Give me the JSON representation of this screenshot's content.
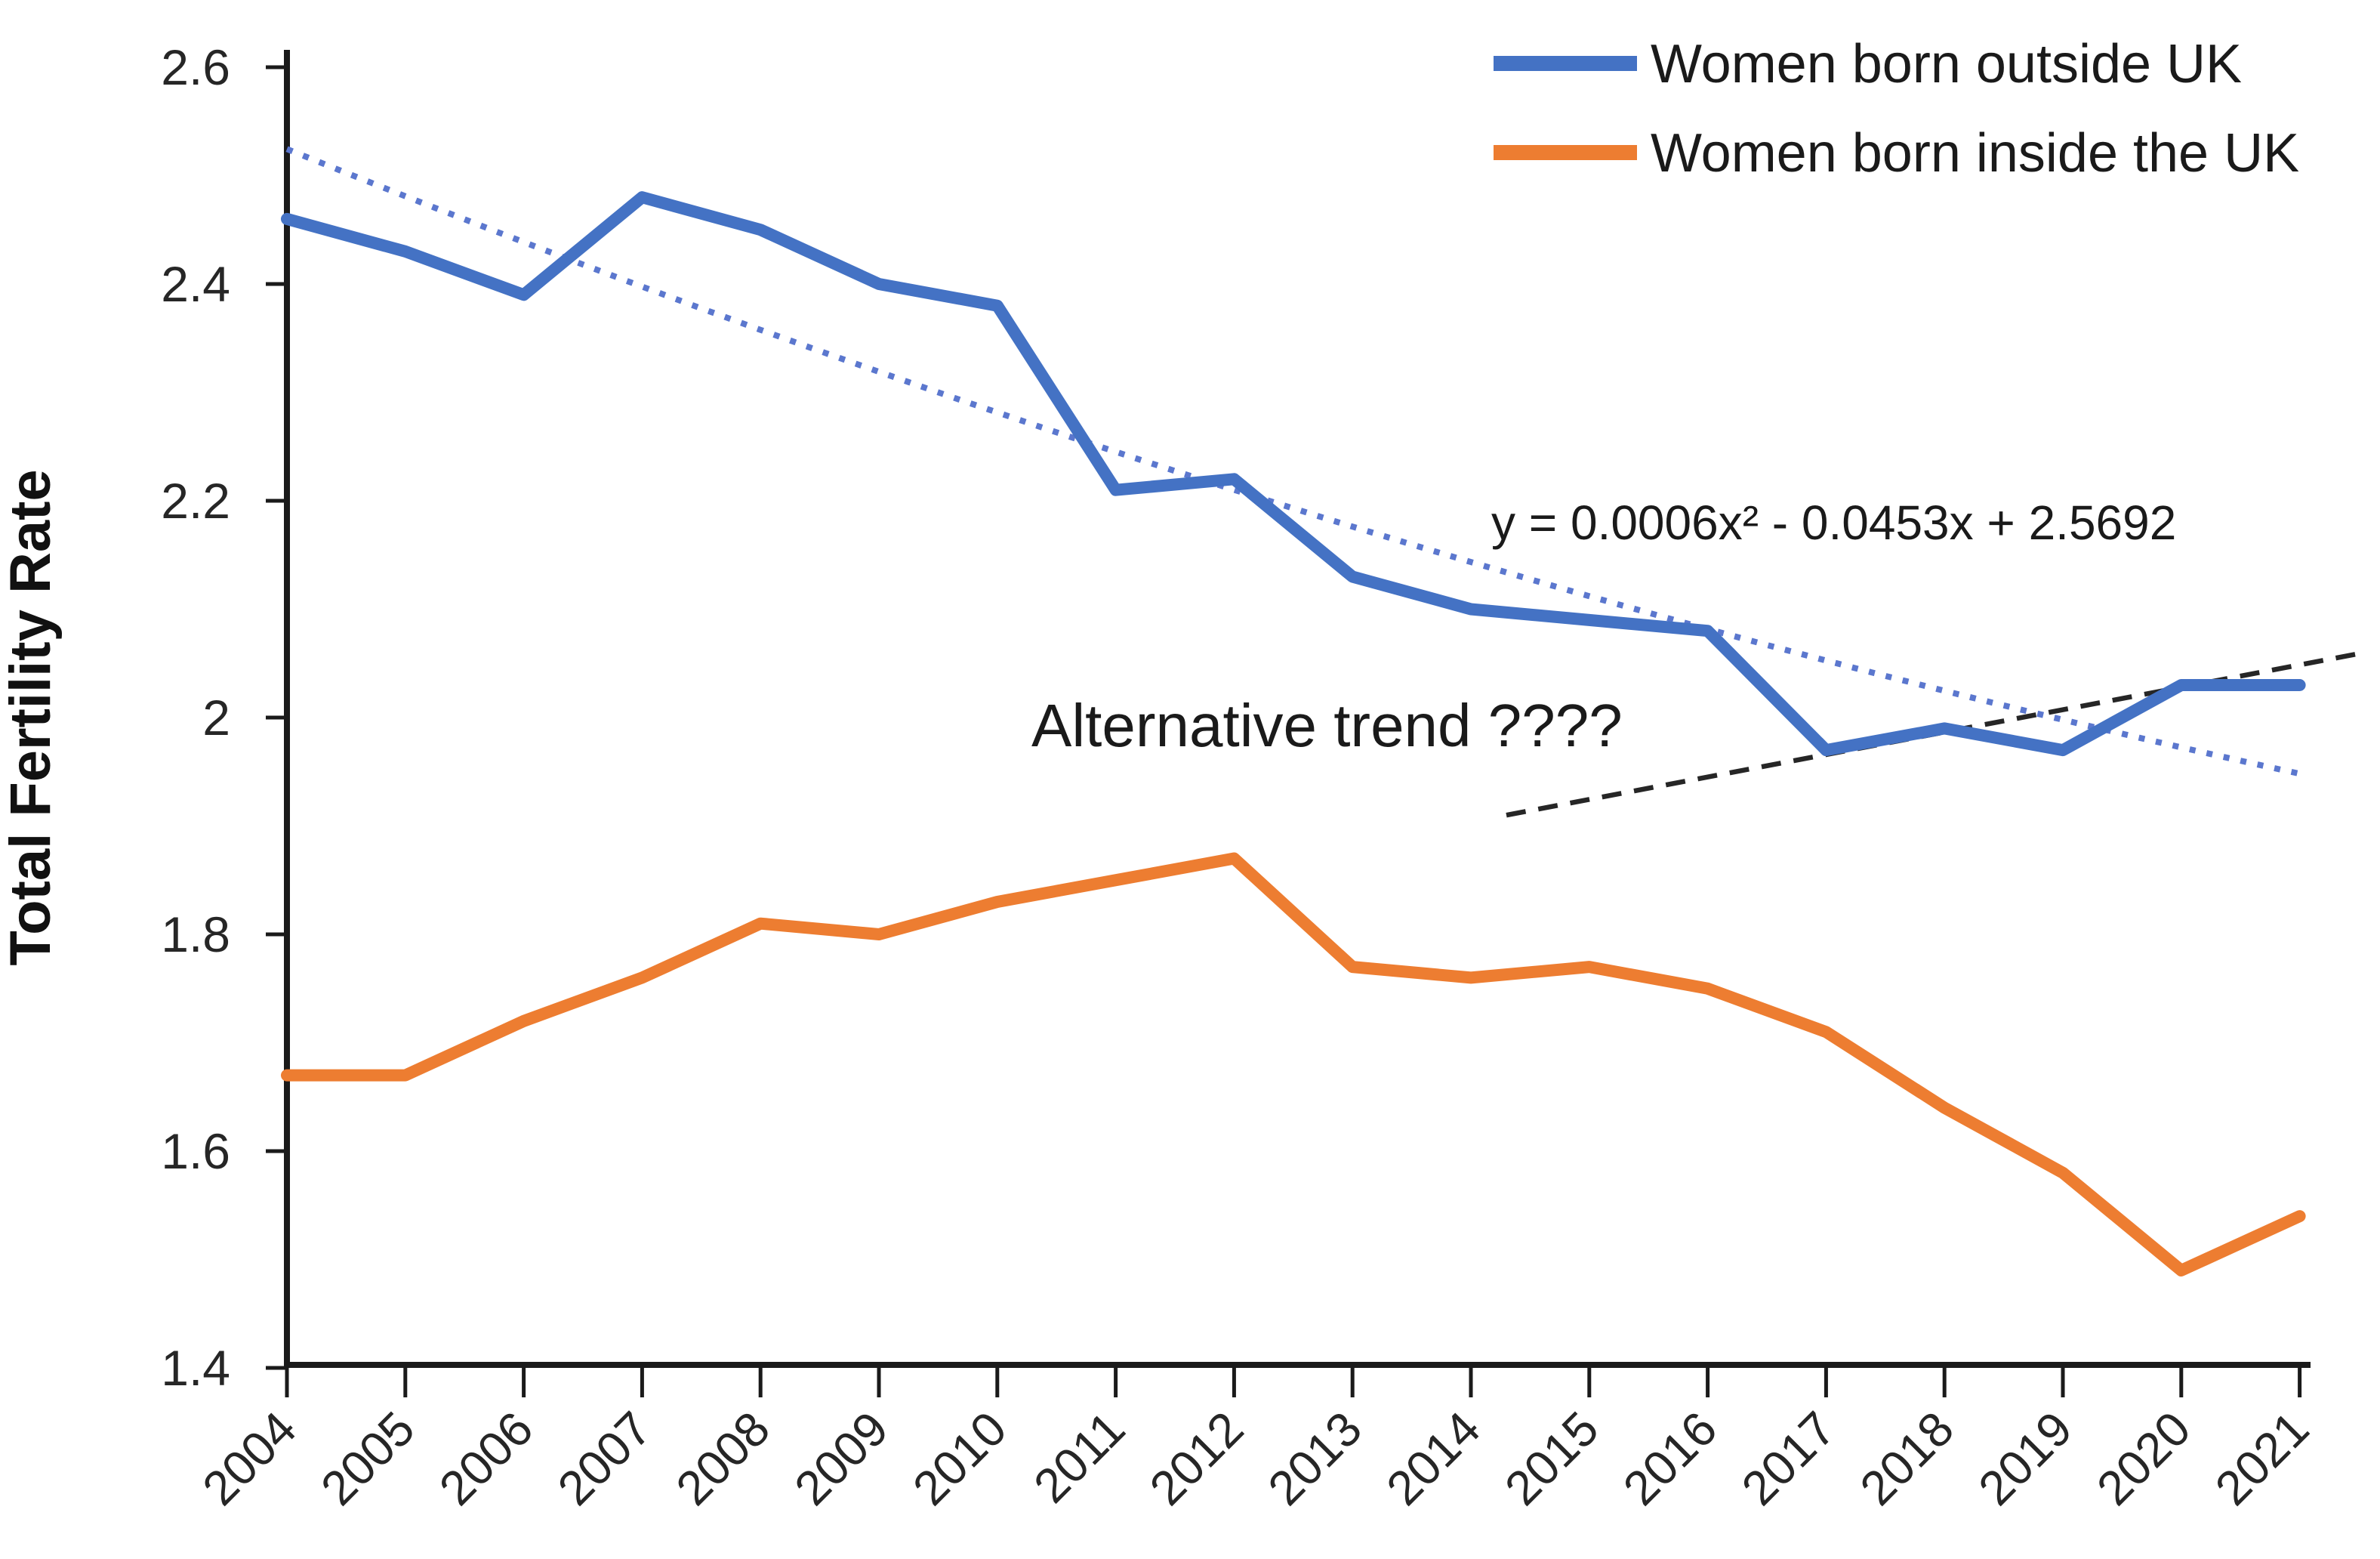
{
  "chart_data": {
    "type": "line",
    "title": "",
    "xlabel": "",
    "ylabel": "Total Fertility Rate",
    "x": [
      "2004",
      "2005",
      "2006",
      "2007",
      "2008",
      "2009",
      "2010",
      "2011",
      "2012",
      "2013",
      "2014",
      "2015",
      "2016",
      "2017",
      "2018",
      "2019",
      "2020",
      "2021"
    ],
    "ylim": [
      1.4,
      2.6
    ],
    "yticks": {
      "values": [
        2.6,
        2.4,
        2.2,
        2.0,
        1.8,
        1.6,
        1.4
      ],
      "labels": [
        "2.6",
        "2.4",
        "2.2",
        "2",
        "1.8",
        "1.6",
        "1.4"
      ]
    },
    "grid": false,
    "legend_position": "top-right",
    "series": [
      {
        "name": "Women born outside UK",
        "color": "#4472C4",
        "style": "solid",
        "values": [
          2.46,
          2.43,
          2.39,
          2.48,
          2.45,
          2.4,
          2.38,
          2.21,
          2.22,
          2.13,
          2.1,
          2.09,
          2.08,
          1.97,
          1.99,
          1.97,
          2.03,
          2.03
        ]
      },
      {
        "name": "Women born inside the UK",
        "color": "#ED7D31",
        "style": "solid",
        "values": [
          1.67,
          1.67,
          1.72,
          1.76,
          1.81,
          1.8,
          1.83,
          1.85,
          1.87,
          1.77,
          1.76,
          1.77,
          1.75,
          1.71,
          1.64,
          1.58,
          1.49,
          1.54
        ]
      }
    ],
    "trendline": {
      "applies_to": "Women born outside UK",
      "label": "y = 0.0006x² - 0.0453x + 2.5692",
      "coefficients": {
        "a": 0.0006,
        "b": -0.0453,
        "c": 2.5692
      },
      "x_range": [
        1,
        18
      ],
      "color": "#5B77CE",
      "style": "dotted"
    },
    "annotation": {
      "text": "Alternative trend ????"
    },
    "alt_trend_line": {
      "style": "dashed",
      "color": "#262626",
      "from": {
        "year": 2014.3,
        "value": 1.91
      },
      "to": {
        "year": 2021.55,
        "value": 2.06
      }
    }
  }
}
